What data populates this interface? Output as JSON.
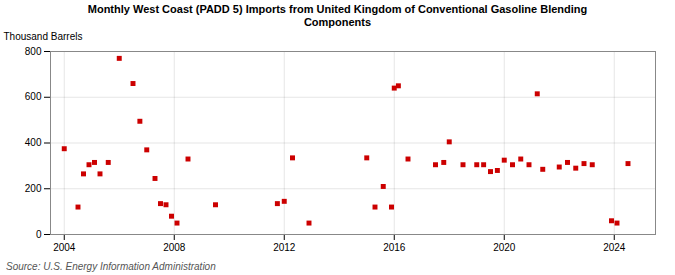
{
  "chart_data": {
    "type": "scatter",
    "title": "Monthly West Coast (PADD 5) Imports from United Kingdom of Conventional Gasoline Blending\nComponents",
    "ylabel": "Thousand Barrels",
    "annotations": [
      "Source: U.S. Energy Information Administration"
    ],
    "color": "#cc0000",
    "marker": "square",
    "grid": true,
    "xlim": [
      2003.5,
      2025.5
    ],
    "ylim": [
      0,
      800
    ],
    "xticks": [
      2004,
      2008,
      2012,
      2016,
      2020,
      2024
    ],
    "yticks": [
      0,
      200,
      400,
      600,
      800
    ],
    "x": [
      2004.0,
      2004.5,
      2004.7,
      2004.9,
      2005.1,
      2005.3,
      2005.6,
      2006.0,
      2006.5,
      2006.75,
      2007.0,
      2007.3,
      2007.5,
      2007.7,
      2007.9,
      2008.1,
      2008.5,
      2009.5,
      2011.75,
      2012.0,
      2012.3,
      2012.9,
      2015.0,
      2015.3,
      2015.6,
      2015.9,
      2016.0,
      2016.15,
      2016.5,
      2017.5,
      2017.8,
      2018.0,
      2018.5,
      2019.0,
      2019.25,
      2019.5,
      2019.75,
      2020.0,
      2020.3,
      2020.6,
      2020.9,
      2021.2,
      2021.4,
      2022.0,
      2022.3,
      2022.6,
      2022.9,
      2023.2,
      2023.9,
      2024.1,
      2024.5
    ],
    "values": [
      375,
      120,
      265,
      305,
      315,
      265,
      315,
      770,
      660,
      495,
      370,
      245,
      135,
      130,
      80,
      50,
      330,
      130,
      135,
      145,
      335,
      50,
      335,
      120,
      210,
      120,
      640,
      650,
      330,
      305,
      315,
      405,
      305,
      305,
      305,
      275,
      280,
      325,
      305,
      330,
      305,
      615,
      285,
      295,
      315,
      290,
      310,
      305,
      60,
      50,
      310
    ]
  }
}
